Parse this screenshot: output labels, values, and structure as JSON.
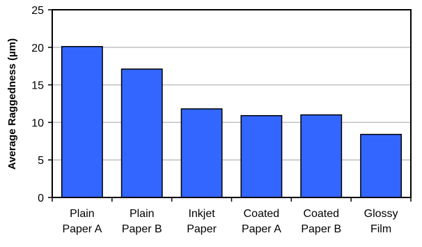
{
  "chart_data": {
    "type": "bar",
    "title": "",
    "xlabel": "",
    "ylabel": "Average Raggedness (µm)",
    "ylim": [
      0,
      25
    ],
    "yticks": [
      0,
      5,
      10,
      15,
      20,
      25
    ],
    "grid": true,
    "categories": [
      [
        "Plain",
        "Paper A"
      ],
      [
        "Plain",
        "Paper B"
      ],
      [
        "Inkjet",
        "Paper"
      ],
      [
        "Coated",
        "Paper A"
      ],
      [
        "Coated",
        "Paper B"
      ],
      [
        "Glossy",
        "Film"
      ]
    ],
    "values": [
      20.1,
      17.1,
      11.8,
      10.9,
      11.0,
      8.4
    ],
    "colors": {
      "bar": "#3366FF",
      "bar_stroke": "#000000",
      "grid": "#C0C0C0",
      "axis": "#000000"
    }
  }
}
